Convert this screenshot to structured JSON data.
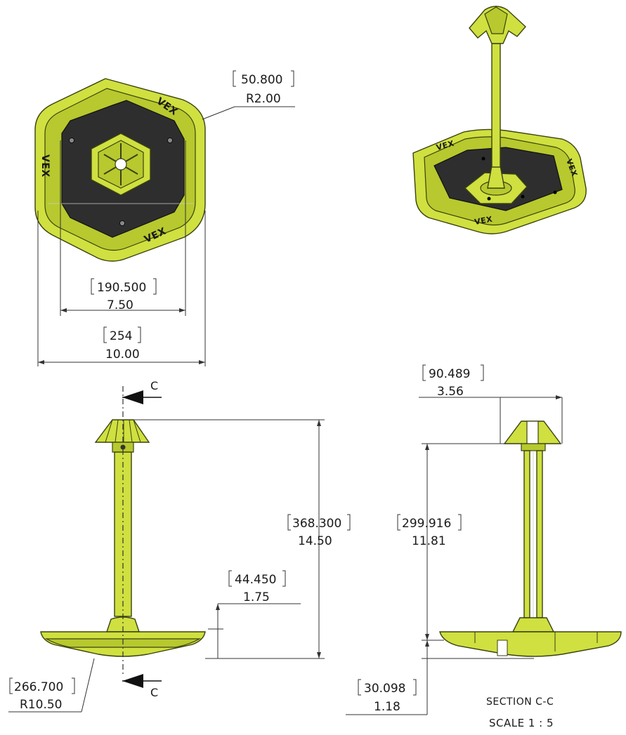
{
  "dimensions": {
    "corner_radius": {
      "mm": "50.800",
      "in": "R2.00"
    },
    "inner_width": {
      "mm": "190.500",
      "in": "7.50"
    },
    "overall_width": {
      "mm": "254",
      "in": "10.00"
    },
    "cap_width": {
      "mm": "90.489",
      "in": "3.56"
    },
    "overall_height": {
      "mm": "368.300",
      "in": "14.50"
    },
    "section_height": {
      "mm": "299.916",
      "in": "11.81"
    },
    "base_height": {
      "mm": "44.450",
      "in": "1.75"
    },
    "base_radius": {
      "mm": "266.700",
      "in": "R10.50"
    },
    "base_offset": {
      "mm": "30.098",
      "in": "1.18"
    }
  },
  "section_marker": "C",
  "section_title": "SECTION C-C",
  "scale_label": "SCALE  1 : 5",
  "brand_mark": "VEX",
  "colors": {
    "part": "#cfe040",
    "mat": "#2e2e2e",
    "lines": "#333333"
  }
}
